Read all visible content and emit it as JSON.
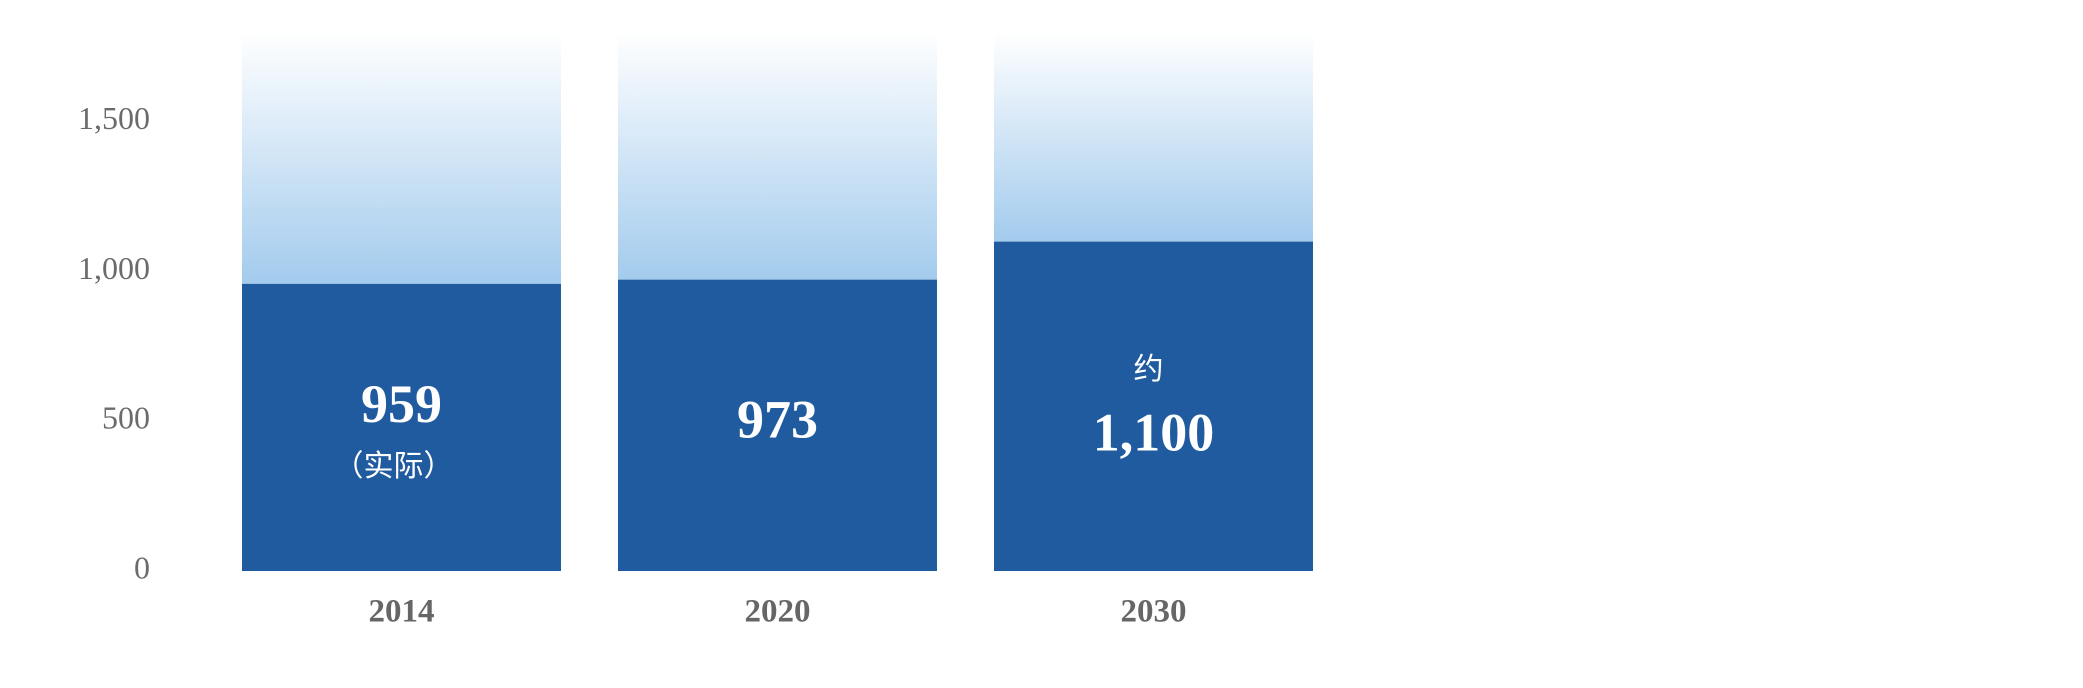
{
  "chart_data": {
    "type": "bar",
    "categories": [
      "2014",
      "2020",
      "2030"
    ],
    "values": [
      959,
      973,
      1100
    ],
    "value_labels": [
      "959",
      "973",
      "1,100"
    ],
    "value_notes": [
      "（实际）",
      null,
      null
    ],
    "value_prefixes": [
      null,
      null,
      "约"
    ],
    "color": "#1f5b9e",
    "ylim": [
      0,
      1800
    ],
    "yticks": [
      0,
      500,
      {
        "value": 1000,
        "label": "1,000"
      },
      {
        "value": 1500,
        "label": "1,500"
      }
    ],
    "grid": false
  }
}
